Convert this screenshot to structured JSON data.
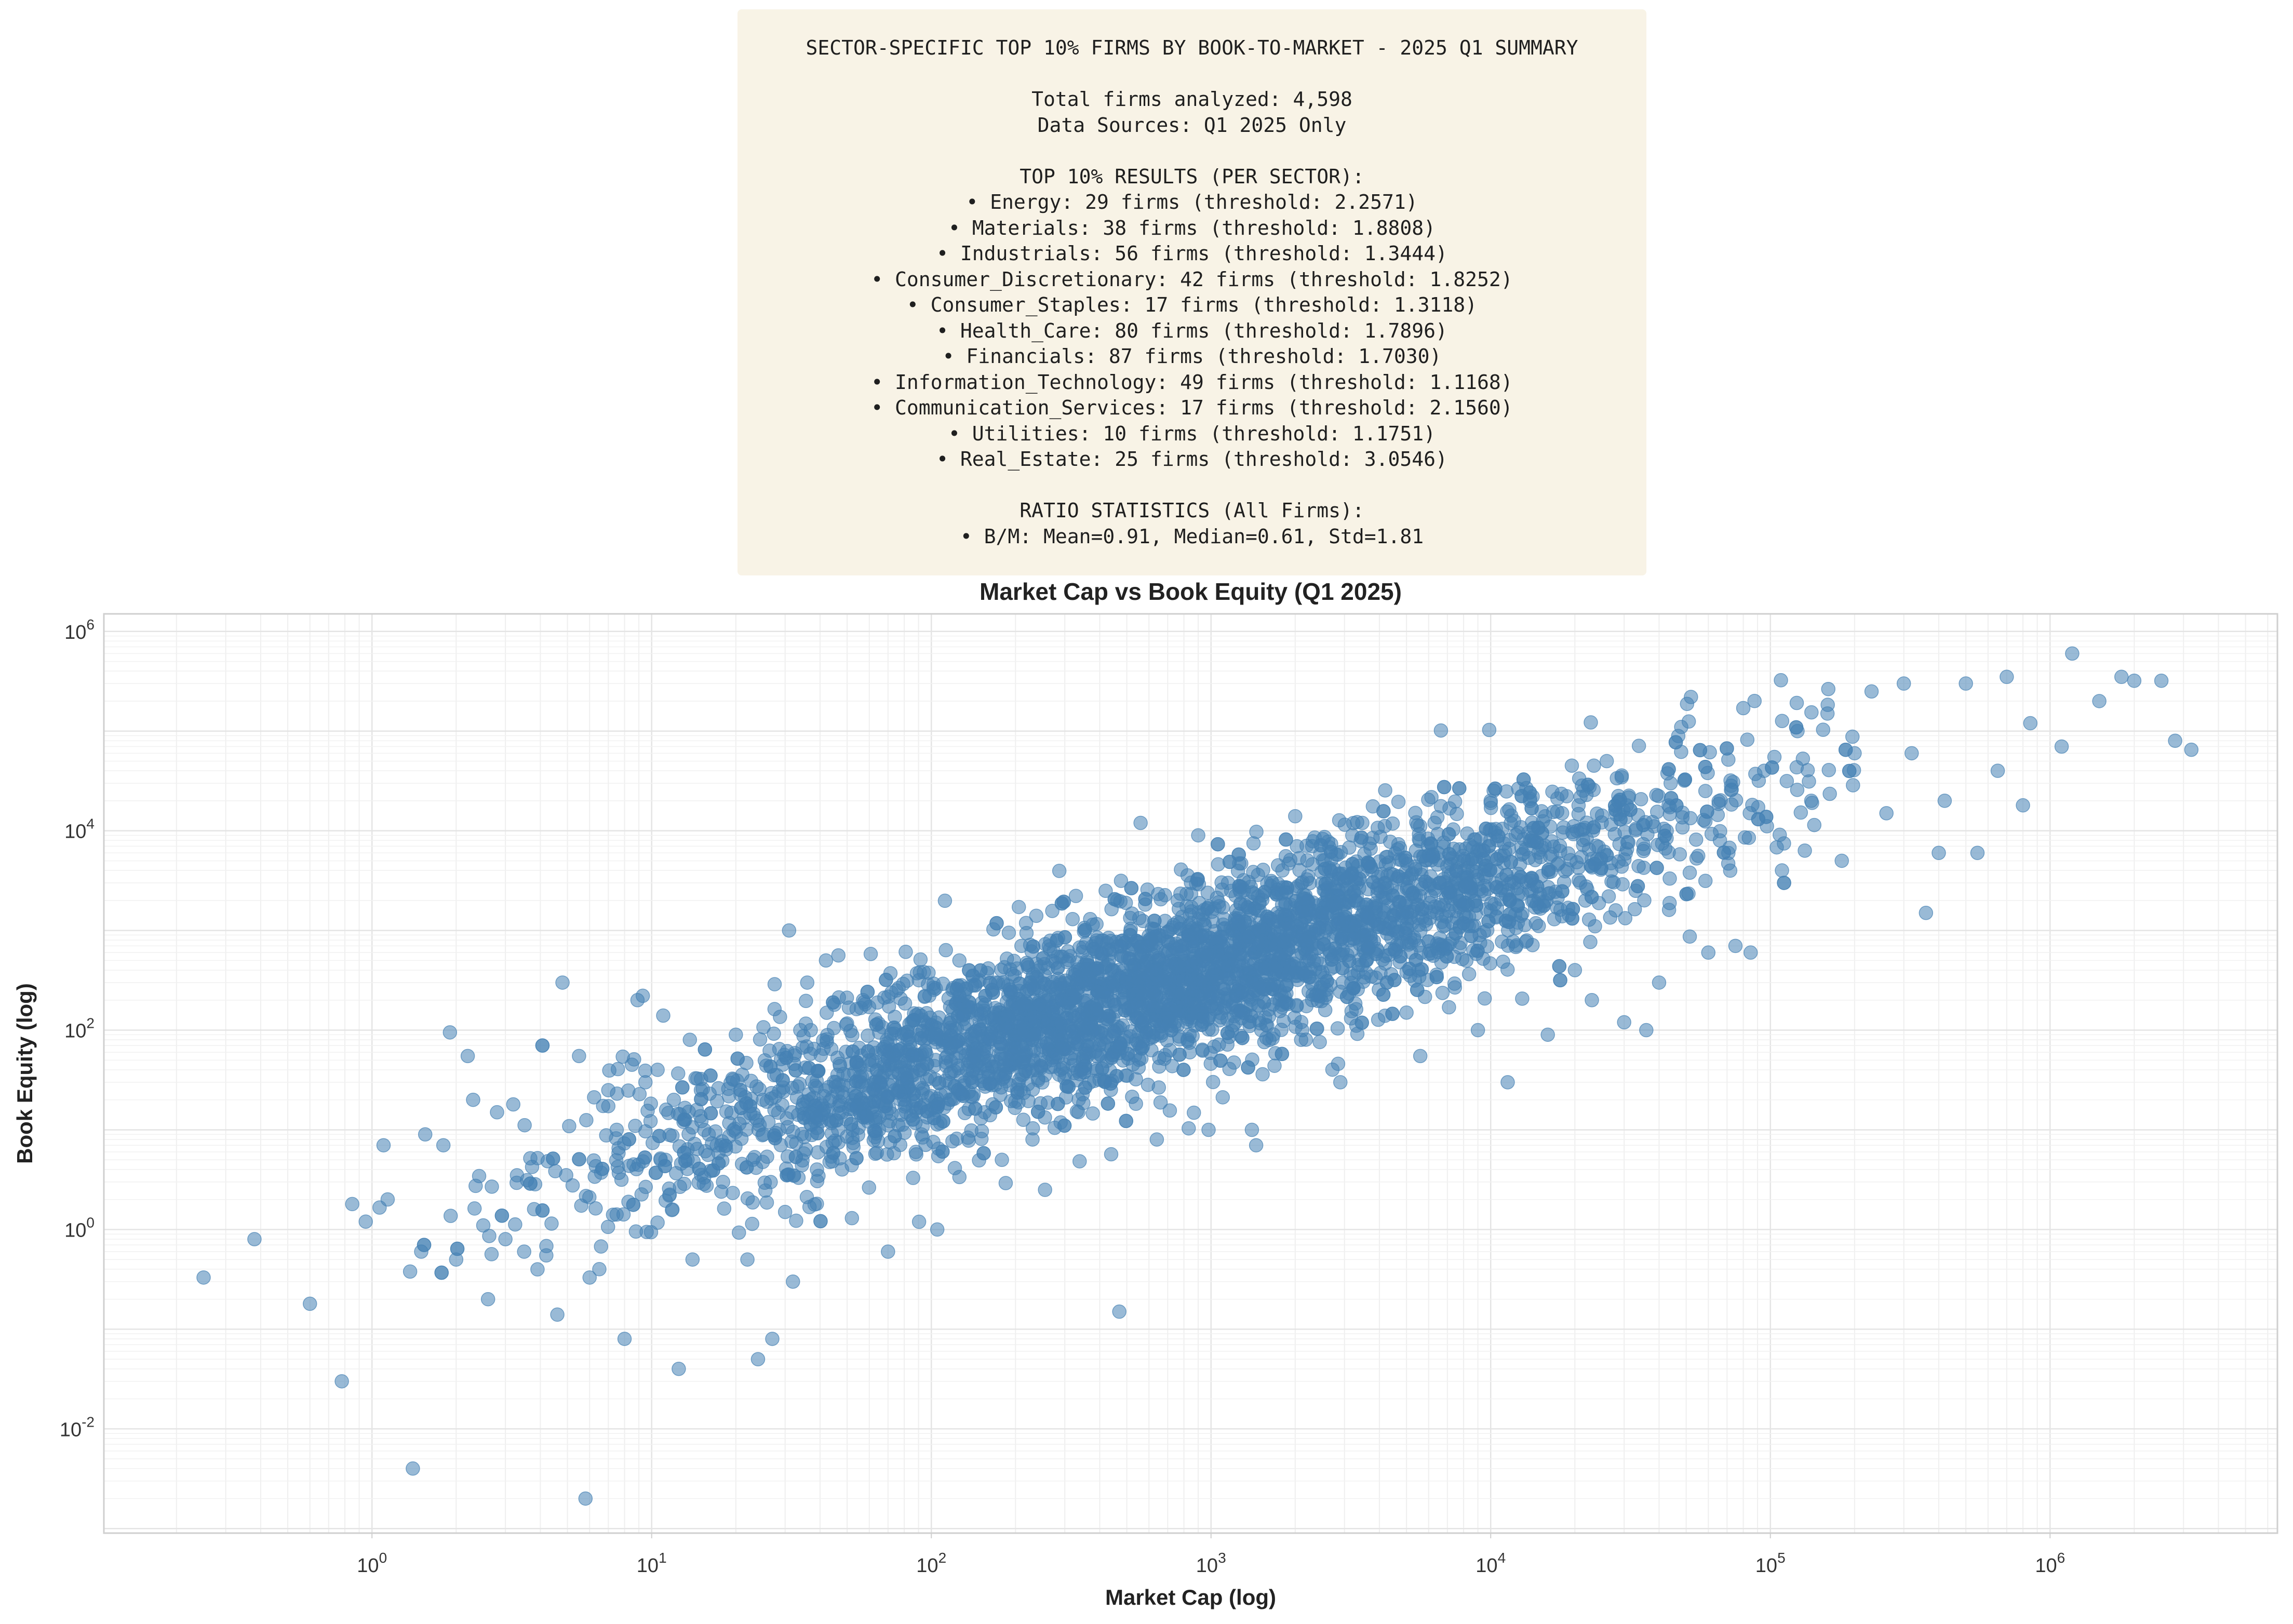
{
  "summary": {
    "title": "SECTOR-SPECIFIC TOP 10% FIRMS BY BOOK-TO-MARKET - 2025 Q1 SUMMARY",
    "total_firms": "Total firms analyzed: 4,598",
    "data_sources": "Data Sources: Q1 2025 Only",
    "results_heading": "TOP 10% RESULTS (PER SECTOR):",
    "sectors": [
      "• Energy: 29 firms (threshold: 2.2571)",
      "• Materials: 38 firms (threshold: 1.8808)",
      "• Industrials: 56 firms (threshold: 1.3444)",
      "• Consumer_Discretionary: 42 firms (threshold: 1.8252)",
      "• Consumer_Staples: 17 firms (threshold: 1.3118)",
      "• Health_Care: 80 firms (threshold: 1.7896)",
      "• Financials: 87 firms (threshold: 1.7030)",
      "• Information_Technology: 49 firms (threshold: 1.1168)",
      "• Communication_Services: 17 firms (threshold: 2.1560)",
      "• Utilities: 10 firms (threshold: 1.1751)",
      "• Real_Estate: 25 firms (threshold: 3.0546)"
    ],
    "stats_heading": "RATIO STATISTICS (All Firms):",
    "stats_line": "• B/M: Mean=0.91, Median=0.61, Std=1.81"
  },
  "chart_data": {
    "type": "scatter",
    "title": "Market Cap vs Book Equity (Q1 2025)",
    "xlabel": "Market Cap (log)",
    "ylabel": "Book Equity (log)",
    "x_scale": "log",
    "y_scale": "log",
    "xlim": [
      0.11,
      6500000
    ],
    "ylim": [
      0.0009,
      1500000
    ],
    "x_ticks": [
      1,
      10,
      100,
      1000,
      10000,
      100000,
      1000000
    ],
    "x_tick_labels": [
      "10^0",
      "10^1",
      "10^2",
      "10^3",
      "10^4",
      "10^5",
      "10^6"
    ],
    "y_ticks": [
      0.01,
      1,
      100,
      10000,
      1000000
    ],
    "y_tick_labels": [
      "10^-2",
      "10^0",
      "10^2",
      "10^4",
      "10^6"
    ],
    "grid": true,
    "point_color": "#4682b4",
    "point_alpha": 0.55,
    "series": [
      {
        "points": [
          [
            0.25,
            0.33
          ],
          [
            0.38,
            0.8
          ],
          [
            0.6,
            0.18
          ],
          [
            0.78,
            0.03
          ],
          [
            0.85,
            1.8
          ],
          [
            0.95,
            1.2
          ],
          [
            1.1,
            7
          ],
          [
            1.4,
            0.004
          ],
          [
            1.5,
            0.6
          ],
          [
            1.55,
            9
          ],
          [
            1.8,
            7
          ],
          [
            1.9,
            95
          ],
          [
            2.0,
            0.5
          ],
          [
            2.2,
            55
          ],
          [
            2.3,
            20
          ],
          [
            2.5,
            1.1
          ],
          [
            2.6,
            0.2
          ],
          [
            2.8,
            15
          ],
          [
            3.0,
            0.8
          ],
          [
            3.2,
            18
          ],
          [
            3.3,
            3.5
          ],
          [
            3.5,
            0.6
          ],
          [
            3.8,
            1.6
          ],
          [
            4.2,
            0.55
          ],
          [
            4.6,
            0.14
          ],
          [
            4.8,
            300
          ],
          [
            5.5,
            55
          ],
          [
            5.8,
            0.002
          ],
          [
            6.0,
            0.33
          ],
          [
            6.5,
            0.4
          ],
          [
            7.0,
            25
          ],
          [
            7.5,
            10
          ],
          [
            8.0,
            0.08
          ],
          [
            8.5,
            45
          ],
          [
            8.9,
            200
          ],
          [
            9.5,
            30
          ],
          [
            10.5,
            40
          ],
          [
            11,
            140
          ],
          [
            12,
            20
          ],
          [
            12.5,
            0.04
          ],
          [
            13,
            12
          ],
          [
            14,
            0.5
          ],
          [
            15,
            25
          ],
          [
            16,
            9
          ],
          [
            18,
            3
          ],
          [
            20,
            90
          ],
          [
            22,
            0.5
          ],
          [
            23,
            5
          ],
          [
            24,
            0.05
          ],
          [
            25,
            20
          ],
          [
            27,
            0.08
          ],
          [
            30,
            1.5
          ],
          [
            31,
            1000
          ],
          [
            32,
            0.3
          ],
          [
            34,
            100
          ],
          [
            36,
            300
          ],
          [
            39,
            4
          ],
          [
            42,
            500
          ],
          [
            45,
            180
          ],
          [
            48,
            15
          ],
          [
            52,
            1.3
          ],
          [
            57,
            200
          ],
          [
            60,
            50
          ],
          [
            65,
            10
          ],
          [
            70,
            0.6
          ],
          [
            75,
            250
          ],
          [
            80,
            20
          ],
          [
            88,
            6
          ],
          [
            95,
            120
          ],
          [
            105,
            1.0
          ],
          [
            110,
            70
          ],
          [
            118,
            20
          ],
          [
            126,
            500
          ],
          [
            140,
            80
          ],
          [
            155,
            15
          ],
          [
            170,
            300
          ],
          [
            190,
            50
          ],
          [
            210,
            700
          ],
          [
            230,
            8
          ],
          [
            255,
            2.5
          ],
          [
            260,
            200
          ],
          [
            290,
            40
          ],
          [
            320,
            1300
          ],
          [
            340,
            400
          ],
          [
            380,
            100
          ],
          [
            420,
            2500
          ],
          [
            450,
            60
          ],
          [
            470,
            0.15
          ],
          [
            500,
            300
          ],
          [
            560,
            12000
          ],
          [
            600,
            800
          ],
          [
            640,
            8
          ],
          [
            700,
            200
          ],
          [
            760,
            2000
          ],
          [
            840,
            60
          ],
          [
            900,
            9000
          ],
          [
            980,
            10
          ],
          [
            1050,
            500
          ],
          [
            1150,
            3000
          ],
          [
            1300,
            150
          ],
          [
            1400,
            10
          ],
          [
            1450,
            7
          ],
          [
            1600,
            700
          ],
          [
            1800,
            4000
          ],
          [
            2000,
            14000
          ],
          [
            2100,
            80
          ],
          [
            2300,
            200
          ],
          [
            2600,
            1500
          ],
          [
            2900,
            30
          ],
          [
            3200,
            9000
          ],
          [
            3600,
            500
          ],
          [
            4200,
            3000
          ],
          [
            5000,
            150
          ],
          [
            5600,
            55
          ],
          [
            6300,
            12000
          ],
          [
            7000,
            700
          ],
          [
            8000,
            1800
          ],
          [
            9000,
            100
          ],
          [
            10000,
            20000
          ],
          [
            11500,
            30
          ],
          [
            12500,
            1200
          ],
          [
            14000,
            2500
          ],
          [
            16000,
            90
          ],
          [
            18000,
            15000
          ],
          [
            20000,
            400
          ],
          [
            23000,
            200
          ],
          [
            26000,
            50000
          ],
          [
            30000,
            120
          ],
          [
            33000,
            2500
          ],
          [
            36000,
            100
          ],
          [
            40000,
            300
          ],
          [
            44000,
            30000
          ],
          [
            48000,
            110000
          ],
          [
            52000,
            220000
          ],
          [
            60000,
            600
          ],
          [
            66000,
            8000
          ],
          [
            75000,
            700
          ],
          [
            80000,
            170000
          ],
          [
            85000,
            600
          ],
          [
            95000,
            40000
          ],
          [
            110000,
            4000
          ],
          [
            125000,
            100000
          ],
          [
            140000,
            20000
          ],
          [
            160000,
            150000
          ],
          [
            180000,
            5000
          ],
          [
            200000,
            60000
          ],
          [
            230000,
            250000
          ],
          [
            260000,
            15000
          ],
          [
            300000,
            300000
          ],
          [
            320000,
            60000
          ],
          [
            360000,
            1500
          ],
          [
            400000,
            6000
          ],
          [
            420000,
            20000
          ],
          [
            500000,
            300000
          ],
          [
            550000,
            6000
          ],
          [
            650000,
            40000
          ],
          [
            700000,
            350000
          ],
          [
            800000,
            18000
          ],
          [
            850000,
            120000
          ],
          [
            1100000,
            70000
          ],
          [
            1200000,
            600000
          ],
          [
            1500000,
            200000
          ],
          [
            1800000,
            350000
          ],
          [
            2000000,
            320000
          ],
          [
            2500000,
            320000
          ],
          [
            2800000,
            80000
          ],
          [
            3200000,
            65000
          ]
        ],
        "trend": {
          "intercept_log10": -0.15,
          "slope": 0.92,
          "x_range_log10": [
            0.0,
            5.3
          ],
          "scatter_sd_log10": 0.45
        }
      }
    ]
  }
}
